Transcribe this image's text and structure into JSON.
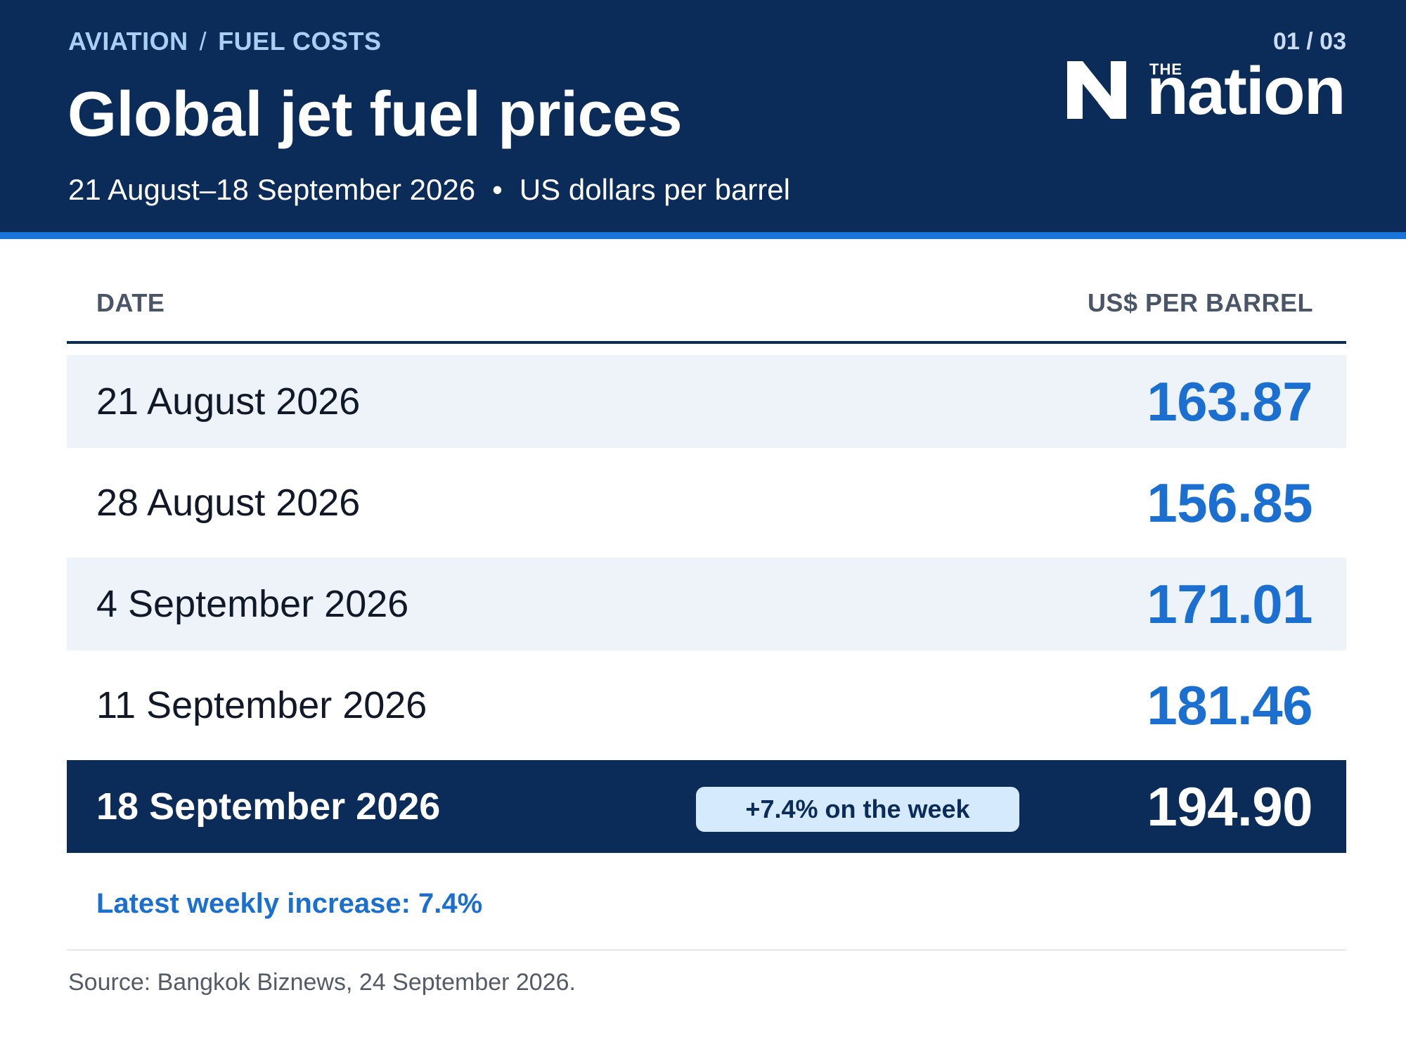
{
  "header": {
    "breadcrumb": [
      "AVIATION",
      "FUEL COSTS"
    ],
    "breadcrumb_separator": "/",
    "title": "Global jet fuel prices",
    "subtitle_period": "21 August–18 September 2026",
    "subtitle_separator": "•",
    "subtitle_unit": "US dollars per barrel",
    "page_indicator": "01 / 03",
    "logo": {
      "small": "THE",
      "word": "nation",
      "icon": "the-nation-n-logo-icon"
    }
  },
  "table": {
    "columns": [
      "DATE",
      "US$ PER BARREL"
    ],
    "rows": [
      {
        "date": "21 August 2026",
        "value": "163.87"
      },
      {
        "date": "28 August 2026",
        "value": "156.85"
      },
      {
        "date": "4 September 2026",
        "value": "171.01"
      },
      {
        "date": "11 September 2026",
        "value": "181.46"
      },
      {
        "date": "18 September 2026",
        "value": "194.90",
        "badge": "+7.4% on the week"
      }
    ]
  },
  "note": "Latest weekly increase: 7.4%",
  "source": "Source: Bangkok Biznews, 24 September 2026.",
  "colors": {
    "navy": "#0b2c59",
    "accent_blue": "#1a6fd0",
    "row_shade": "#eef3fa",
    "badge_bg": "#d6eafd"
  },
  "chart_data": {
    "type": "table",
    "title": "Global jet fuel prices",
    "subtitle": "21 August–18 September 2026 • US dollars per barrel",
    "columns": [
      "DATE",
      "US$ PER BARREL"
    ],
    "categories": [
      "21 August 2026",
      "28 August 2026",
      "4 September 2026",
      "11 September 2026",
      "18 September 2026"
    ],
    "values": [
      163.87,
      156.85,
      171.01,
      181.46,
      194.9
    ],
    "annotations": [
      "+7.4% on the week",
      "Latest weekly increase: 7.4%"
    ]
  }
}
